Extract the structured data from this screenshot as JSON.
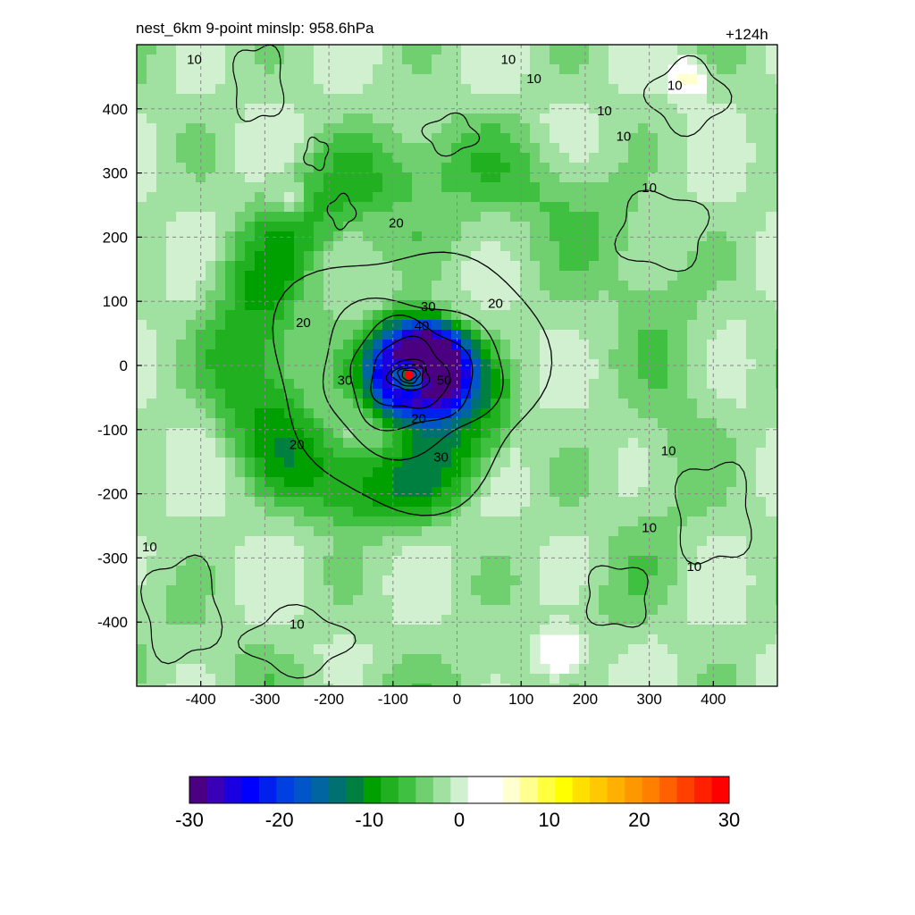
{
  "header": {
    "title": "nest_6km  9-point minslp: 958.6hPa",
    "lead_time": "+124h"
  },
  "chart_data": {
    "type": "heatmap",
    "title": "nest_6km  9-point minslp: 958.6hPa",
    "subtitle": "+124h",
    "xlabel": "",
    "ylabel": "",
    "xlim": [
      -500,
      500
    ],
    "ylim": [
      -500,
      500
    ],
    "x_ticks": [
      -400,
      -300,
      -200,
      -100,
      0,
      100,
      200,
      300,
      400
    ],
    "y_ticks": [
      400,
      300,
      200,
      100,
      0,
      -100,
      -200,
      -300,
      -400
    ],
    "grid": true,
    "grid_style": "dashed",
    "colorbar": {
      "range": [
        -30,
        30
      ],
      "ticks": [
        -30,
        -20,
        -10,
        0,
        10,
        20,
        30
      ],
      "colors": [
        "#4b0082",
        "#3a00b8",
        "#1a00e0",
        "#0000ff",
        "#0020f0",
        "#0040e0",
        "#0055c8",
        "#0065a0",
        "#007070",
        "#008040",
        "#00a000",
        "#20b020",
        "#40c040",
        "#70d070",
        "#a0e0a0",
        "#d0f0d0",
        "#ffffff",
        "#ffffff",
        "#ffffd0",
        "#ffff90",
        "#ffff40",
        "#ffff00",
        "#ffe000",
        "#ffc800",
        "#ffb000",
        "#ff9800",
        "#ff8000",
        "#ff6000",
        "#ff4000",
        "#ff2000",
        "#ff0000"
      ]
    },
    "contour_levels": [
      10,
      20,
      30,
      40,
      50
    ],
    "contour_labels": [
      "10",
      "10",
      "10",
      "10",
      "10",
      "10",
      "10",
      "10",
      "10",
      "10",
      "10",
      "10",
      "20",
      "20",
      "20",
      "20",
      "20",
      "30",
      "30",
      "30",
      "40",
      "50"
    ],
    "center_marker": {
      "x": -75,
      "y": -15,
      "color": "#ff0000"
    }
  }
}
